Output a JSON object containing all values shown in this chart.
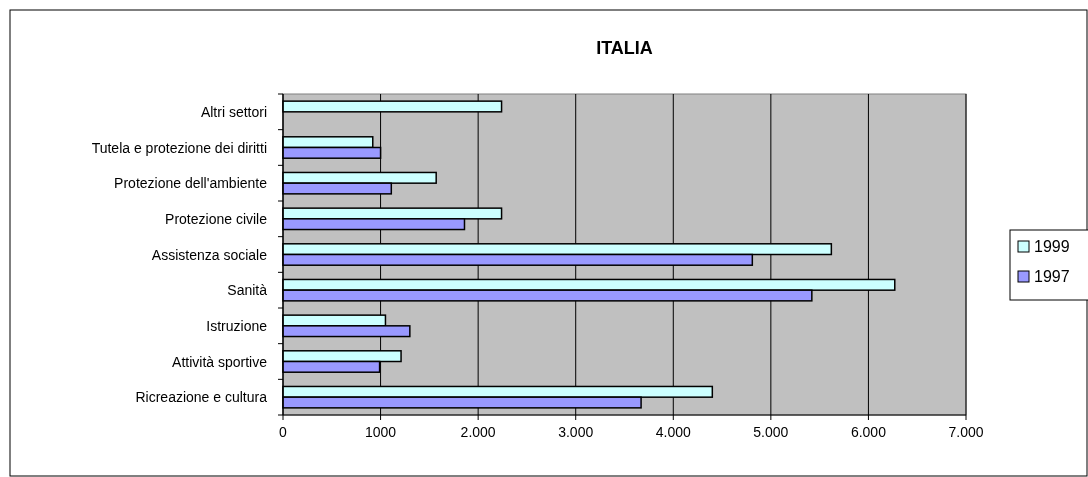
{
  "chart_data": {
    "type": "bar",
    "orientation": "horizontal",
    "title": "ITALIA",
    "categories": [
      "Altri settori",
      "Tutela e protezione dei diritti",
      "Protezione dell'ambiente",
      "Protezione civile",
      "Assistenza sociale",
      "Sanità",
      "Istruzione",
      "Attività sportive",
      "Ricreazione e cultura"
    ],
    "series": [
      {
        "name": "1999",
        "color": "#ccffff",
        "values": [
          2240,
          920,
          1570,
          2240,
          5620,
          6270,
          1050,
          1210,
          4400
        ]
      },
      {
        "name": "1997",
        "color": "#9999ff",
        "values": [
          null,
          1000,
          1110,
          1860,
          4810,
          5420,
          1300,
          990,
          3670
        ]
      }
    ],
    "xlim": [
      0,
      7000
    ],
    "xticks": [
      0,
      1000,
      {
        "value": 2000,
        "label": "2.000"
      },
      {
        "value": 3000,
        "label": "3.000"
      },
      {
        "value": 4000,
        "label": "4.000"
      },
      {
        "value": 5000,
        "label": "5.000"
      },
      {
        "value": 6000,
        "label": "6.000"
      },
      {
        "value": 7000,
        "label": "7.000"
      }
    ],
    "grid": "x",
    "legend": "right"
  }
}
